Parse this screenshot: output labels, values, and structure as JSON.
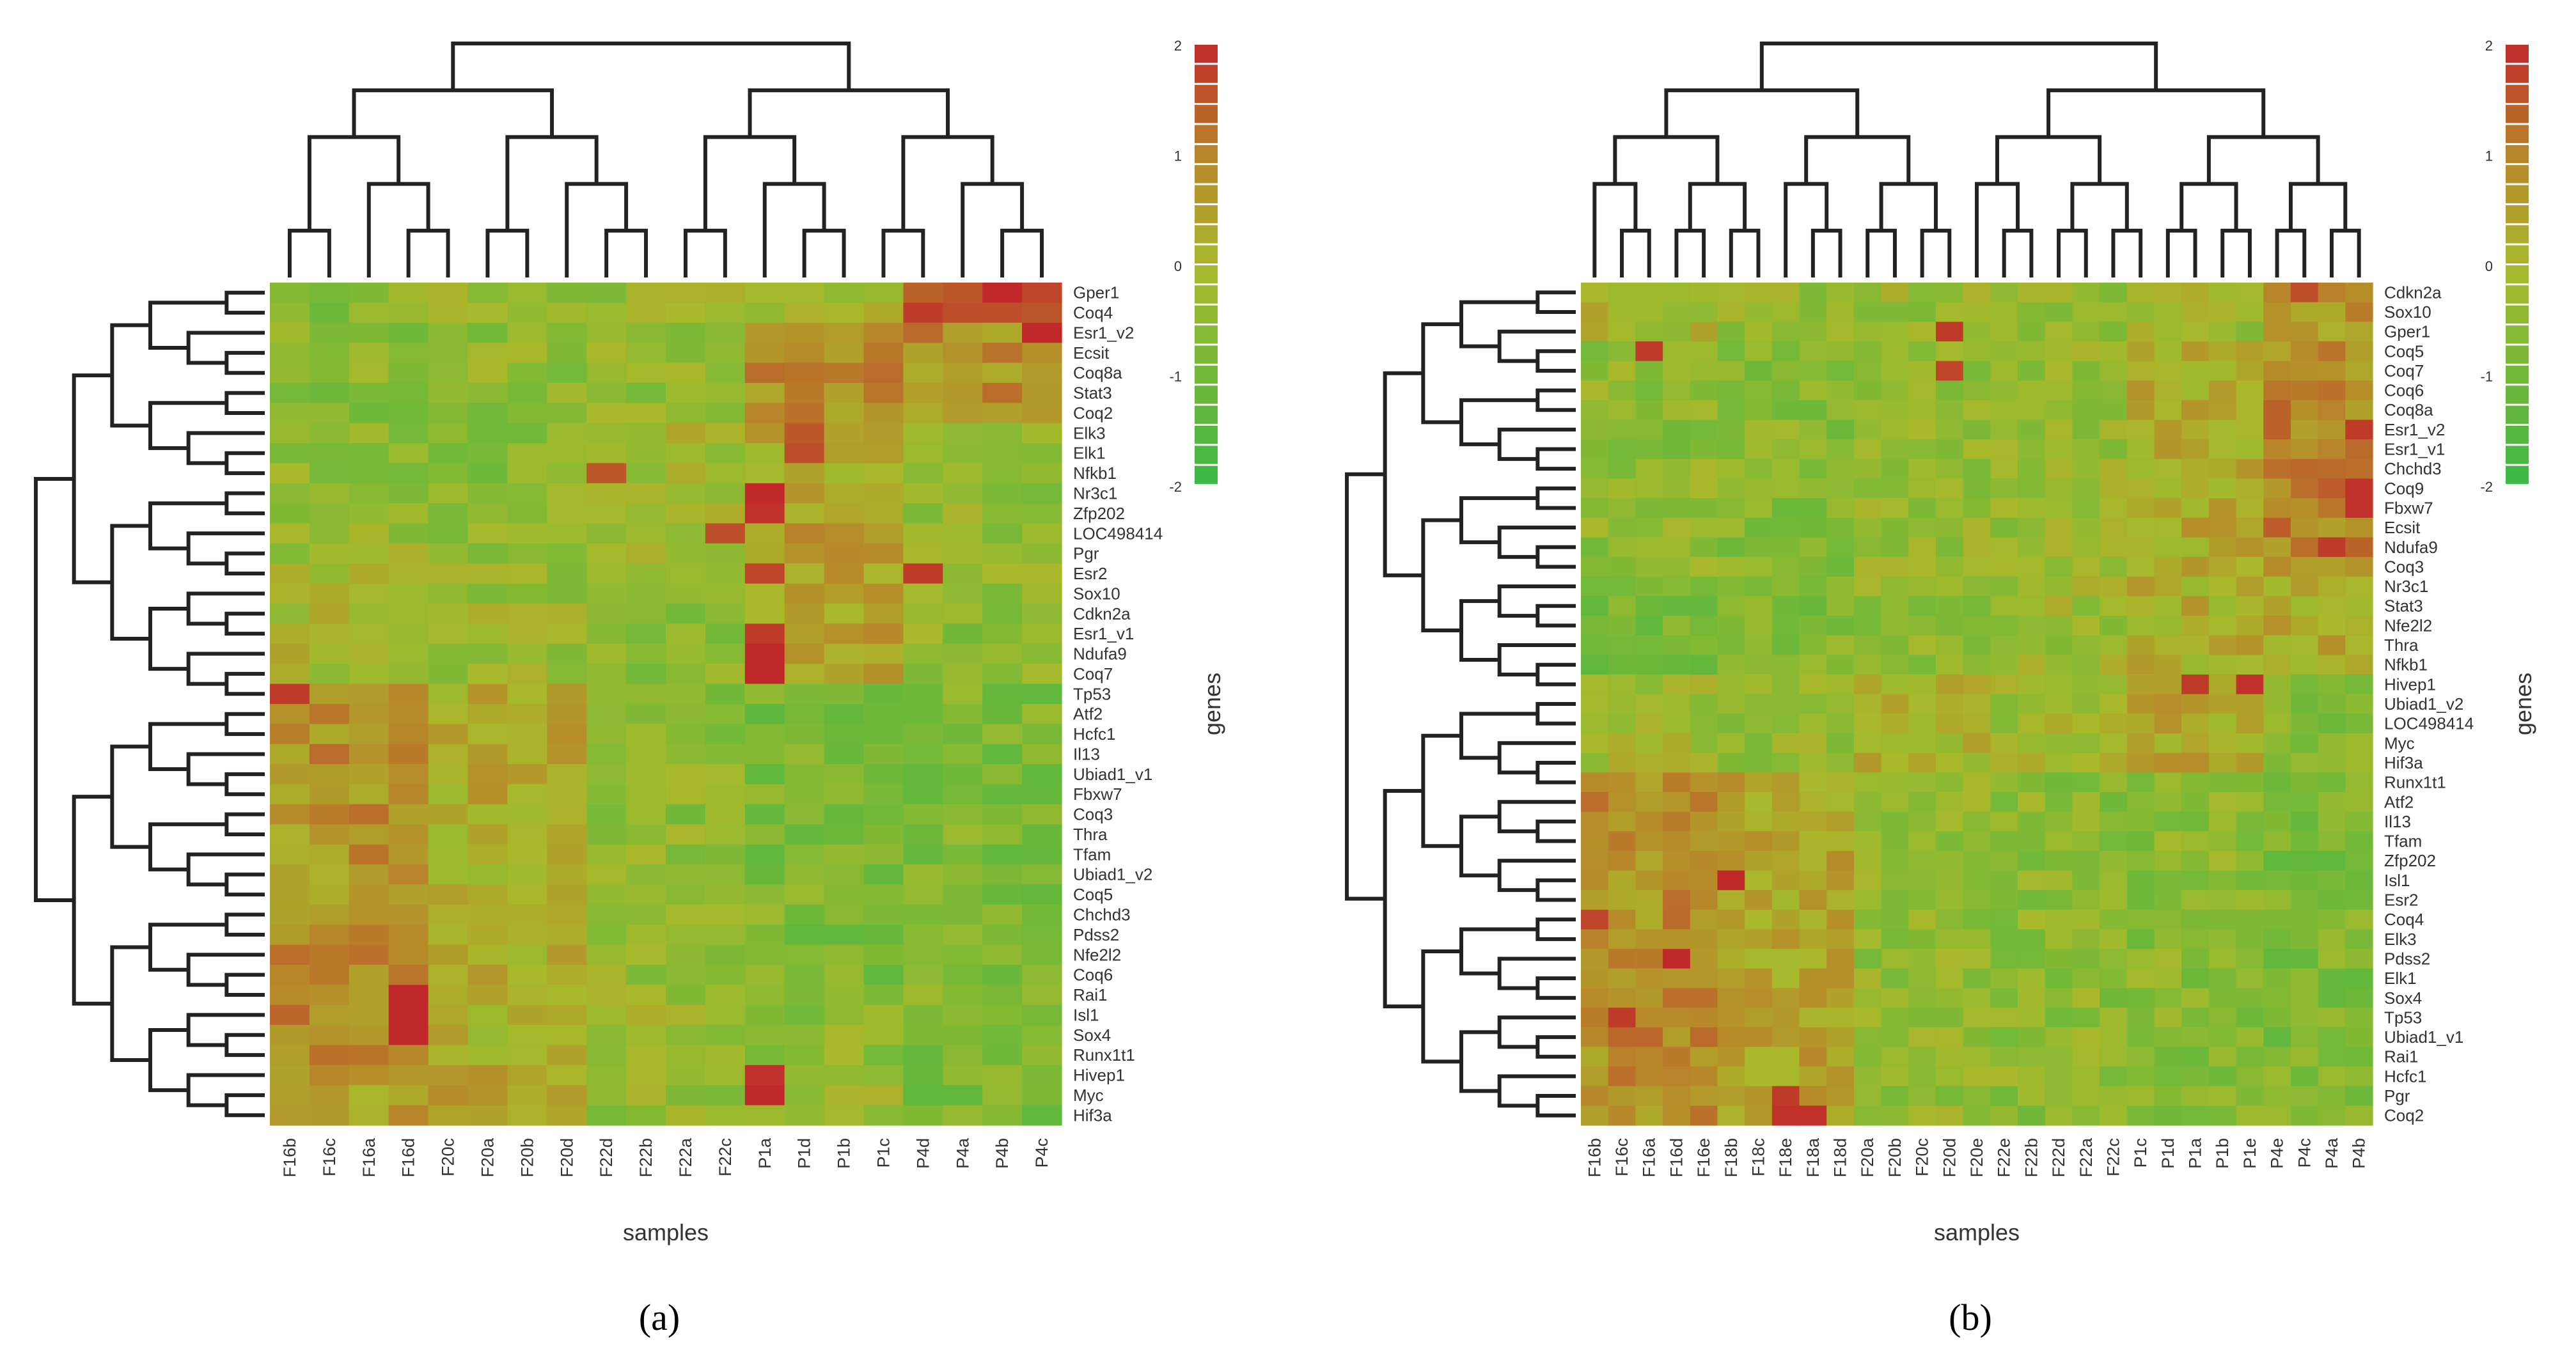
{
  "chart_data": [
    {
      "type": "heatmap",
      "panel_label": "(a)",
      "xlabel": "samples",
      "ylabel": "genes",
      "colorbar": {
        "ticks": [
          2,
          1,
          0,
          -1,
          -2
        ],
        "range": [
          -2,
          2
        ]
      },
      "colors": {
        "high": "#c0282a",
        "mid_high": "#b8862a",
        "mid": "#a9b92b",
        "low": "#3cb846"
      },
      "columns": [
        "F16b",
        "F16c",
        "F16a",
        "F16d",
        "F20c",
        "F20a",
        "F20b",
        "F20d",
        "F22d",
        "F22b",
        "F22a",
        "F22c",
        "P1a",
        "P1d",
        "P1b",
        "P1c",
        "P4d",
        "P4a",
        "P4b",
        "P4c"
      ],
      "rows": [
        "Gper1",
        "Coq4",
        "Esr1_v2",
        "Ecsit",
        "Coq8a",
        "Stat3",
        "Coq2",
        "Elk3",
        "Elk1",
        "Nfkb1",
        "Nr3c1",
        "Zfp202",
        "LOC498414",
        "Pgr",
        "Esr2",
        "Sox10",
        "Cdkn2a",
        "Esr1_v1",
        "Ndufa9",
        "Coq7",
        "Tp53",
        "Atf2",
        "Hcfc1",
        "Il13",
        "Ubiad1_v1",
        "Fbxw7",
        "Coq3",
        "Thra",
        "Tfam",
        "Ubiad1_v2",
        "Coq5",
        "Chchd3",
        "Pdss2",
        "Nfe2l2",
        "Coq6",
        "Rai1",
        "Isl1",
        "Sox4",
        "Runx1t1",
        "Hivep1",
        "Myc",
        "Hif3a"
      ],
      "col_groups": [
        [
          0,
          4
        ],
        [
          4,
          8
        ],
        [
          8,
          12
        ],
        [
          12,
          16
        ],
        [
          16,
          20
        ]
      ],
      "row_groups": [
        [
          0,
          2
        ],
        [
          2,
          7
        ],
        [
          7,
          10
        ],
        [
          10,
          14
        ],
        [
          14,
          20
        ],
        [
          20,
          27
        ],
        [
          27,
          35
        ],
        [
          35,
          39
        ],
        [
          39,
          42
        ]
      ],
      "group_means": [
        [
          -0.6,
          -0.4,
          -0.3,
          -0.1,
          1.2
        ],
        [
          -0.6,
          -0.5,
          -0.4,
          0.8,
          0.8
        ],
        [
          -0.5,
          -0.6,
          -0.1,
          0.3,
          -0.2
        ],
        [
          -0.3,
          -0.5,
          -0.3,
          0.6,
          -0.4
        ],
        [
          0.0,
          -0.3,
          -0.5,
          0.5,
          -0.5
        ],
        [
          0.8,
          0.3,
          -0.5,
          -0.9,
          -0.8
        ],
        [
          0.7,
          0.2,
          -0.4,
          -0.8,
          -0.8
        ],
        [
          0.8,
          0.1,
          -0.3,
          -0.5,
          -0.7
        ],
        [
          0.5,
          0.4,
          -0.4,
          -0.2,
          -0.9
        ]
      ],
      "hot_cells": [
        {
          "r": 0,
          "c": 18,
          "v": 2.0
        },
        {
          "r": 1,
          "c": 16,
          "v": 1.8
        },
        {
          "r": 2,
          "c": 19,
          "v": 2.0
        },
        {
          "r": 14,
          "c": 16,
          "v": 1.8
        },
        {
          "r": 10,
          "c": 12,
          "v": 2.0
        },
        {
          "r": 11,
          "c": 12,
          "v": 1.9
        },
        {
          "r": 17,
          "c": 12,
          "v": 1.8
        },
        {
          "r": 18,
          "c": 12,
          "v": 2.0
        },
        {
          "r": 19,
          "c": 12,
          "v": 2.0
        },
        {
          "r": 14,
          "c": 12,
          "v": 1.7
        },
        {
          "r": 39,
          "c": 12,
          "v": 1.9
        },
        {
          "r": 40,
          "c": 12,
          "v": 2.0
        },
        {
          "r": 35,
          "c": 3,
          "v": 2.0
        },
        {
          "r": 36,
          "c": 3,
          "v": 2.0
        },
        {
          "r": 37,
          "c": 3,
          "v": 2.0
        },
        {
          "r": 20,
          "c": 0,
          "v": 1.8
        },
        {
          "r": 12,
          "c": 11,
          "v": 1.6
        },
        {
          "r": 9,
          "c": 8,
          "v": 1.5
        },
        {
          "r": 8,
          "c": 13,
          "v": 1.6
        },
        {
          "r": 7,
          "c": 13,
          "v": 1.5
        }
      ]
    },
    {
      "type": "heatmap",
      "panel_label": "(b)",
      "xlabel": "samples",
      "ylabel": "genes",
      "colorbar": {
        "ticks": [
          2,
          1,
          0,
          -1,
          -2
        ],
        "range": [
          -2,
          2
        ]
      },
      "colors": {
        "high": "#c0282a",
        "mid_high": "#b8862a",
        "mid": "#a9b92b",
        "low": "#3cb846"
      },
      "columns": [
        "F16b",
        "F16c",
        "F16a",
        "F16d",
        "F16e",
        "F18b",
        "F18c",
        "F18e",
        "F18a",
        "F18d",
        "F20a",
        "F20b",
        "F20c",
        "F20d",
        "F20e",
        "F22e",
        "F22b",
        "F22d",
        "F22a",
        "F22c",
        "P1c",
        "P1d",
        "P1a",
        "P1b",
        "P1e",
        "P4e",
        "P4c",
        "P4a",
        "P4b"
      ],
      "rows": [
        "Cdkn2a",
        "Sox10",
        "Gper1",
        "Coq5",
        "Coq7",
        "Coq6",
        "Coq8a",
        "Esr1_v2",
        "Esr1_v1",
        "Chchd3",
        "Coq9",
        "Fbxw7",
        "Ecsit",
        "Ndufa9",
        "Coq3",
        "Nr3c1",
        "Stat3",
        "Nfe2l2",
        "Thra",
        "Nfkb1",
        "Hivep1",
        "Ubiad1_v2",
        "LOC498414",
        "Myc",
        "Hif3a",
        "Runx1t1",
        "Atf2",
        "Il13",
        "Tfam",
        "Zfp202",
        "Isl1",
        "Esr2",
        "Coq4",
        "Elk3",
        "Pdss2",
        "Elk1",
        "Sox4",
        "Tp53",
        "Ubiad1_v1",
        "Rai1",
        "Hcfc1",
        "Pgr",
        "Coq2"
      ],
      "col_groups": [
        [
          0,
          5
        ],
        [
          5,
          10
        ],
        [
          10,
          15
        ],
        [
          15,
          20
        ],
        [
          20,
          25
        ],
        [
          25,
          29
        ]
      ],
      "row_groups": [
        [
          0,
          3
        ],
        [
          3,
          15
        ],
        [
          15,
          20
        ],
        [
          20,
          25
        ],
        [
          25,
          43
        ]
      ],
      "group_means": [
        [
          0.0,
          -0.4,
          -0.3,
          -0.4,
          -0.2,
          0.6
        ],
        [
          -0.5,
          -0.6,
          -0.4,
          -0.3,
          0.3,
          0.9
        ],
        [
          -0.8,
          -0.7,
          -0.5,
          -0.2,
          0.2,
          0.3
        ],
        [
          -0.2,
          -0.4,
          0.1,
          -0.2,
          0.4,
          -0.7
        ],
        [
          0.8,
          0.4,
          -0.4,
          -0.5,
          -0.6,
          -0.8
        ]
      ],
      "hot_cells": [
        {
          "r": 3,
          "c": 2,
          "v": 1.8
        },
        {
          "r": 2,
          "c": 13,
          "v": 1.8
        },
        {
          "r": 4,
          "c": 13,
          "v": 1.7
        },
        {
          "r": 0,
          "c": 26,
          "v": 1.6
        },
        {
          "r": 10,
          "c": 28,
          "v": 1.9
        },
        {
          "r": 11,
          "c": 28,
          "v": 1.9
        },
        {
          "r": 13,
          "c": 27,
          "v": 1.8
        },
        {
          "r": 7,
          "c": 28,
          "v": 1.8
        },
        {
          "r": 20,
          "c": 22,
          "v": 1.8
        },
        {
          "r": 20,
          "c": 24,
          "v": 1.9
        },
        {
          "r": 30,
          "c": 5,
          "v": 2.0
        },
        {
          "r": 34,
          "c": 3,
          "v": 2.0
        },
        {
          "r": 37,
          "c": 1,
          "v": 1.8
        },
        {
          "r": 42,
          "c": 7,
          "v": 1.9
        },
        {
          "r": 42,
          "c": 8,
          "v": 1.9
        },
        {
          "r": 41,
          "c": 7,
          "v": 1.8
        },
        {
          "r": 32,
          "c": 0,
          "v": 1.7
        }
      ]
    }
  ]
}
